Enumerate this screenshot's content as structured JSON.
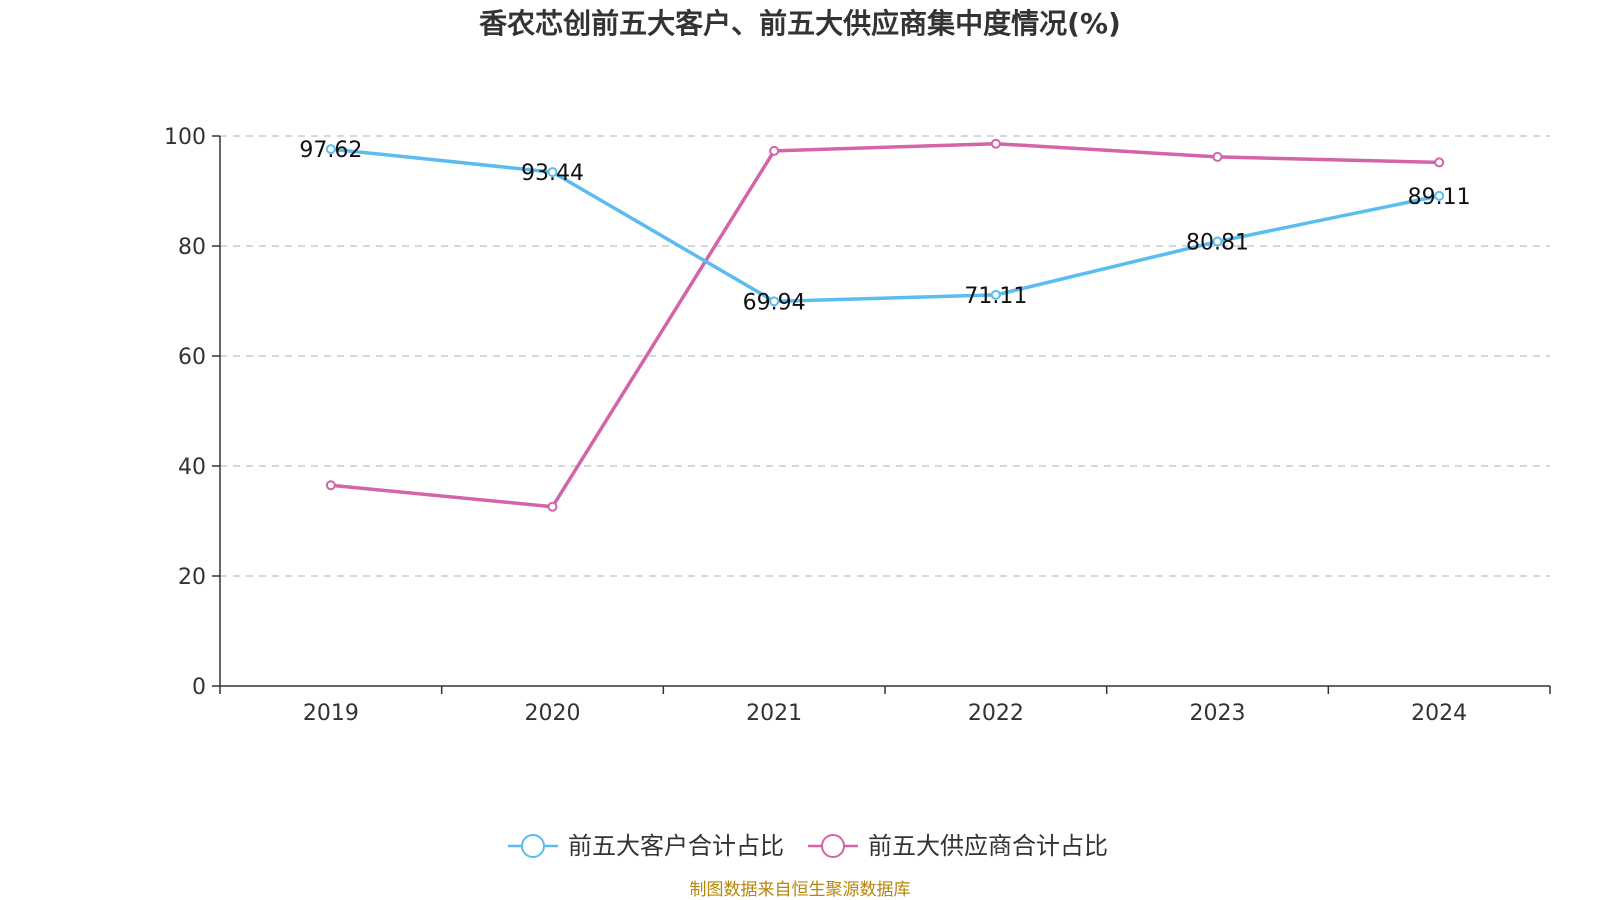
{
  "chart_data": {
    "type": "line",
    "title": "香农芯创前五大客户、前五大供应商集中度情况(%)",
    "xlabel": "",
    "ylabel": "",
    "categories": [
      "2019",
      "2020",
      "2021",
      "2022",
      "2023",
      "2024"
    ],
    "ylim": [
      0,
      100
    ],
    "yticks": [
      0,
      20,
      40,
      60,
      80,
      100
    ],
    "grid": true,
    "legend_position": "bottom",
    "series": [
      {
        "name": "前五大客户合计占比",
        "color": "#5bbcf0",
        "values": [
          97.62,
          93.44,
          69.94,
          71.11,
          80.81,
          89.11
        ],
        "labels": [
          "97.62",
          "93.44",
          "69.94",
          "71.11",
          "80.81",
          "89.11"
        ],
        "show_labels": true
      },
      {
        "name": "前五大供应商合计占比",
        "color": "#d364a8",
        "values": [
          36.5,
          32.6,
          97.3,
          98.6,
          96.2,
          95.2
        ],
        "show_labels": false
      }
    ]
  },
  "source": "制图数据来自恒生聚源数据库"
}
